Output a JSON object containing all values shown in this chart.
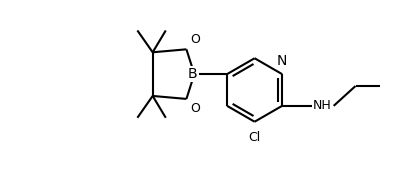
{
  "background_color": "#ffffff",
  "line_color": "#000000",
  "line_width": 1.5,
  "font_size": 9,
  "figsize": [
    4.04,
    1.78
  ],
  "dpi": 100,
  "xlim": [
    0,
    4.04
  ],
  "ylim": [
    0,
    1.78
  ]
}
